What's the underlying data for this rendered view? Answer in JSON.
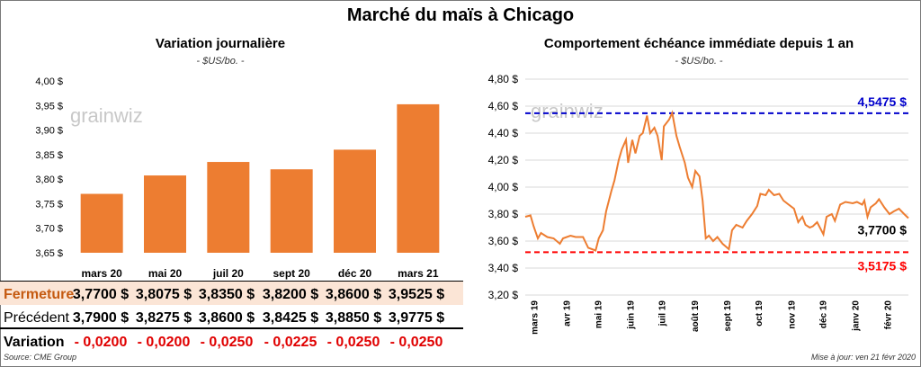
{
  "title": "Marché du maïs à Chicago",
  "left": {
    "title": "Variation  journalière",
    "unit": "- $US/bo. -",
    "watermark": "grainwiz",
    "table": {
      "row_labels": [
        "Fermeture",
        "Précédent",
        "Variation"
      ],
      "fermeture": [
        "3,7700  $",
        "3,8075  $",
        "3,8350  $",
        "3,8200  $",
        "3,8600  $",
        "3,9525  $"
      ],
      "precedent": [
        "3,7900  $",
        "3,8275  $",
        "3,8600  $",
        "3,8425  $",
        "3,8850  $",
        "3,9775  $"
      ],
      "variation": [
        "- 0,0200",
        "- 0,0200",
        "- 0,0250",
        "- 0,0225",
        "- 0,0250",
        "- 0,0250"
      ]
    }
  },
  "right": {
    "title": "Comportement  échéance immédiate depuis 1 an",
    "unit": "- $US/bo. -",
    "watermark": "grainwiz",
    "high_label": "4,5475 $",
    "low_label": "3,5175 $",
    "last_label": "3,7700 $"
  },
  "footer": {
    "source": "Source: CME Group",
    "updated": "Mise à jour: ven 21 févr 2020"
  },
  "colors": {
    "bar": "#ed7d31",
    "high": "#0000cc",
    "low": "#ff0000",
    "line": "#ed7d31"
  },
  "chart_data": [
    {
      "type": "bar",
      "title": "Variation  journalière",
      "categories": [
        "mars 20",
        "mai 20",
        "juil 20",
        "sept 20",
        "déc 20",
        "mars 21"
      ],
      "values": [
        3.77,
        3.8075,
        3.835,
        3.82,
        3.86,
        3.9525
      ],
      "ylim": [
        3.65,
        4.0
      ],
      "yticks": [
        "3,65 $",
        "3,70 $",
        "3,75 $",
        "3,80 $",
        "3,85 $",
        "3,90 $",
        "3,95 $",
        "4,00 $"
      ],
      "ytick_values": [
        3.65,
        3.7,
        3.75,
        3.8,
        3.85,
        3.9,
        3.95,
        4.0
      ],
      "grid": false
    },
    {
      "type": "line",
      "title": "Comportement  échéance immédiate depuis 1 an",
      "ylim": [
        3.2,
        4.8
      ],
      "yticks": [
        "3,20 $",
        "3,40 $",
        "3,60 $",
        "3,80 $",
        "4,00 $",
        "4,20 $",
        "4,40 $",
        "4,60 $",
        "4,80 $"
      ],
      "ytick_values": [
        3.2,
        3.4,
        3.6,
        3.8,
        4.0,
        4.2,
        4.4,
        4.6,
        4.8
      ],
      "xticks": [
        "mars 19",
        "avr 19",
        "mai 19",
        "juin 19",
        "juil 19",
        "août 19",
        "sept 19",
        "oct 19",
        "nov 19",
        "déc 19",
        "janv 20",
        "févr 20"
      ],
      "x_range": [
        "2019-02-21",
        "2020-02-21"
      ],
      "reference_lines": [
        {
          "value": 4.5475,
          "label": "4,5475 $"
        },
        {
          "value": 3.5175,
          "label": "3,5175 $"
        }
      ],
      "grid": true,
      "series": [
        {
          "values": [
            [
              "2019-02-21",
              3.78
            ],
            [
              "2019-02-26",
              3.79
            ],
            [
              "2019-03-01",
              3.71
            ],
            [
              "2019-03-05",
              3.62
            ],
            [
              "2019-03-08",
              3.66
            ],
            [
              "2019-03-14",
              3.63
            ],
            [
              "2019-03-20",
              3.62
            ],
            [
              "2019-03-26",
              3.58
            ],
            [
              "2019-03-29",
              3.62
            ],
            [
              "2019-04-05",
              3.64
            ],
            [
              "2019-04-10",
              3.63
            ],
            [
              "2019-04-17",
              3.63
            ],
            [
              "2019-04-22",
              3.55
            ],
            [
              "2019-04-29",
              3.53
            ],
            [
              "2019-05-02",
              3.62
            ],
            [
              "2019-05-06",
              3.68
            ],
            [
              "2019-05-09",
              3.82
            ],
            [
              "2019-05-14",
              3.97
            ],
            [
              "2019-05-17",
              4.05
            ],
            [
              "2019-05-21",
              4.2
            ],
            [
              "2019-05-24",
              4.28
            ],
            [
              "2019-05-28",
              4.35
            ],
            [
              "2019-05-30",
              4.18
            ],
            [
              "2019-06-03",
              4.35
            ],
            [
              "2019-06-06",
              4.25
            ],
            [
              "2019-06-10",
              4.38
            ],
            [
              "2019-06-13",
              4.4
            ],
            [
              "2019-06-17",
              4.53
            ],
            [
              "2019-06-20",
              4.4
            ],
            [
              "2019-06-24",
              4.44
            ],
            [
              "2019-06-27",
              4.38
            ],
            [
              "2019-07-01",
              4.2
            ],
            [
              "2019-07-03",
              4.45
            ],
            [
              "2019-07-08",
              4.5
            ],
            [
              "2019-07-11",
              4.55
            ],
            [
              "2019-07-15",
              4.38
            ],
            [
              "2019-07-18",
              4.3
            ],
            [
              "2019-07-23",
              4.18
            ],
            [
              "2019-07-26",
              4.07
            ],
            [
              "2019-07-30",
              4.0
            ],
            [
              "2019-08-02",
              4.12
            ],
            [
              "2019-08-06",
              4.08
            ],
            [
              "2019-08-09",
              3.9
            ],
            [
              "2019-08-12",
              3.62
            ],
            [
              "2019-08-15",
              3.64
            ],
            [
              "2019-08-19",
              3.6
            ],
            [
              "2019-08-23",
              3.63
            ],
            [
              "2019-08-28",
              3.58
            ],
            [
              "2019-09-03",
              3.54
            ],
            [
              "2019-09-06",
              3.68
            ],
            [
              "2019-09-10",
              3.72
            ],
            [
              "2019-09-16",
              3.7
            ],
            [
              "2019-09-20",
              3.75
            ],
            [
              "2019-09-25",
              3.8
            ],
            [
              "2019-09-30",
              3.86
            ],
            [
              "2019-10-03",
              3.95
            ],
            [
              "2019-10-08",
              3.94
            ],
            [
              "2019-10-11",
              3.98
            ],
            [
              "2019-10-16",
              3.94
            ],
            [
              "2019-10-21",
              3.95
            ],
            [
              "2019-10-25",
              3.9
            ],
            [
              "2019-10-30",
              3.87
            ],
            [
              "2019-11-04",
              3.84
            ],
            [
              "2019-11-08",
              3.74
            ],
            [
              "2019-11-12",
              3.78
            ],
            [
              "2019-11-15",
              3.72
            ],
            [
              "2019-11-19",
              3.7
            ],
            [
              "2019-11-22",
              3.71
            ],
            [
              "2019-11-26",
              3.74
            ],
            [
              "2019-12-02",
              3.65
            ],
            [
              "2019-12-05",
              3.78
            ],
            [
              "2019-12-10",
              3.8
            ],
            [
              "2019-12-13",
              3.75
            ],
            [
              "2019-12-18",
              3.87
            ],
            [
              "2019-12-23",
              3.89
            ],
            [
              "2019-12-30",
              3.88
            ],
            [
              "2020-01-03",
              3.89
            ],
            [
              "2020-01-08",
              3.87
            ],
            [
              "2020-01-10",
              3.9
            ],
            [
              "2020-01-13",
              3.78
            ],
            [
              "2020-01-16",
              3.85
            ],
            [
              "2020-01-21",
              3.88
            ],
            [
              "2020-01-24",
              3.91
            ],
            [
              "2020-01-29",
              3.85
            ],
            [
              "2020-02-03",
              3.8
            ],
            [
              "2020-02-07",
              3.82
            ],
            [
              "2020-02-12",
              3.84
            ],
            [
              "2020-02-17",
              3.8
            ],
            [
              "2020-02-21",
              3.77
            ]
          ]
        }
      ]
    }
  ]
}
